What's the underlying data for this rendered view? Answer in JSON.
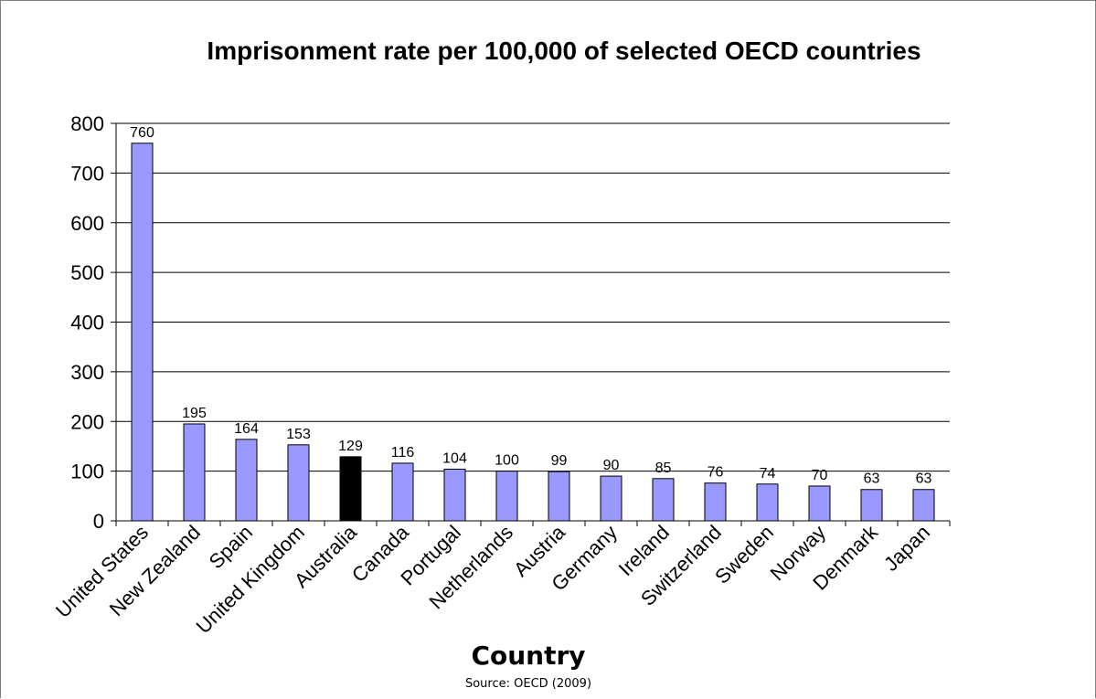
{
  "chart_data": {
    "type": "bar",
    "title": "Imprisonment rate per 100,000 of selected OECD countries",
    "xlabel": "Country",
    "ylabel": "",
    "source": "Source: OECD (2009)",
    "ylim": [
      0,
      800
    ],
    "yticks": [
      0,
      100,
      200,
      300,
      400,
      500,
      600,
      700,
      800
    ],
    "grid": true,
    "legend": "none",
    "categories": [
      "United States",
      "New Zealand",
      "Spain",
      "United Kingdom",
      "Australia",
      "Canada",
      "Portugal",
      "Netherlands",
      "Austria",
      "Germany",
      "Ireland",
      "Switzerland",
      "Sweden",
      "Norway",
      "Denmark",
      "Japan"
    ],
    "values": [
      760,
      195,
      164,
      153,
      129,
      116,
      104,
      100,
      99,
      90,
      85,
      76,
      74,
      70,
      63,
      63
    ],
    "data_labels": [
      "760",
      "195",
      "164",
      "153",
      "129",
      "116",
      "104",
      "100",
      "99",
      "90",
      "85",
      "76",
      "74",
      "70",
      "63",
      "63"
    ],
    "colors": {
      "default_bar": "#9999ff",
      "highlight_bar": "#000000",
      "highlight_category": "Australia",
      "bar_outline": "#000000",
      "gridline": "#000000"
    }
  }
}
